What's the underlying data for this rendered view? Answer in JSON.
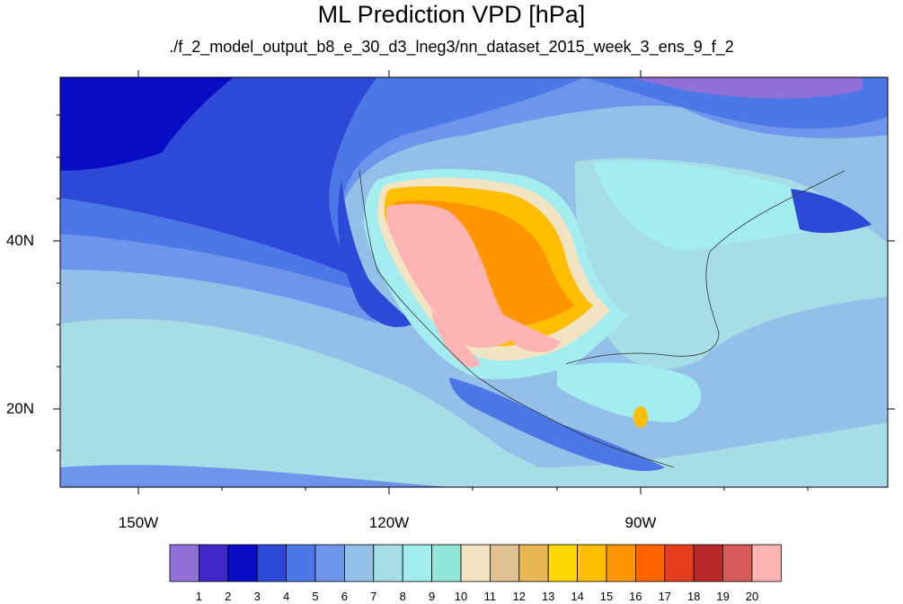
{
  "title": "ML Prediction VPD [hPa]",
  "subtitle": "./f_2_model_output_b8_e_30_d3_lneg3/nn_dataset_2015_week_3_ens_9_f_2",
  "map": {
    "lon_range": [
      -160,
      -60
    ],
    "lat_range": [
      10,
      60
    ],
    "lat_ticks": [
      "20N",
      "40N"
    ],
    "lon_ticks": [
      "150W",
      "120W",
      "90W"
    ]
  },
  "colorbar": {
    "labels": [
      "1",
      "2",
      "3",
      "4",
      "5",
      "6",
      "7",
      "8",
      "9",
      "10",
      "11",
      "12",
      "13",
      "14",
      "15",
      "16",
      "17",
      "18",
      "19",
      "20"
    ],
    "colors": [
      "#9170d9",
      "#4028c6",
      "#0a0bc4",
      "#2d49d8",
      "#4c77e6",
      "#6e95ec",
      "#93bfe8",
      "#a7dde6",
      "#a3ecef",
      "#92e7d8",
      "#f2e3c2",
      "#dfc193",
      "#e8b654",
      "#ffd700",
      "#ffbe00",
      "#ff9600",
      "#ff6400",
      "#e63c1e",
      "#b92828",
      "#d75a5a",
      "#ffb4b4"
    ]
  }
}
